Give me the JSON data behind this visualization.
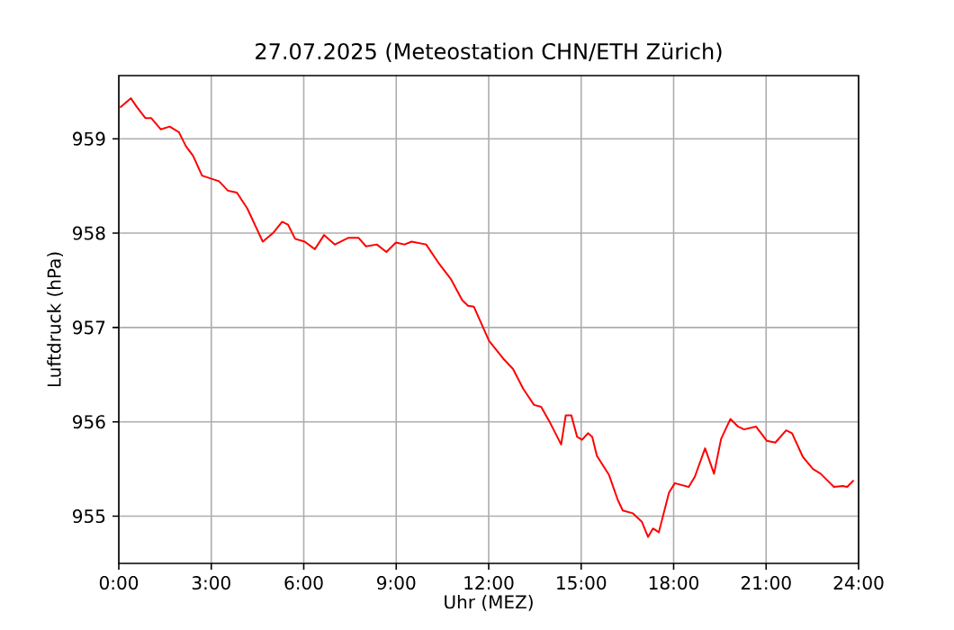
{
  "chart_data": {
    "type": "line",
    "title": "27.07.2025  (Meteostation CHN/ETH Zürich)",
    "xlabel": "Uhr (MEZ)",
    "ylabel": "Luftdruck (hPa)",
    "xlim": [
      0,
      24
    ],
    "ylim": [
      954.5,
      959.67
    ],
    "xticks": [
      {
        "value": 0,
        "label": "0:00"
      },
      {
        "value": 3,
        "label": "3:00"
      },
      {
        "value": 6,
        "label": "6:00"
      },
      {
        "value": 9,
        "label": "9:00"
      },
      {
        "value": 12,
        "label": "12:00"
      },
      {
        "value": 15,
        "label": "15:00"
      },
      {
        "value": 18,
        "label": "18:00"
      },
      {
        "value": 21,
        "label": "21:00"
      },
      {
        "value": 24,
        "label": "24:00"
      }
    ],
    "yticks": [
      955,
      956,
      957,
      958,
      959
    ],
    "grid": true,
    "marker": "none",
    "line_style": "solid",
    "series": [
      {
        "color": "#ff0000",
        "x": [
          0.04,
          0.39,
          0.58,
          0.86,
          1.05,
          1.36,
          1.65,
          1.95,
          2.18,
          2.41,
          2.7,
          3.25,
          3.54,
          3.83,
          4.17,
          4.67,
          5.0,
          5.3,
          5.49,
          5.72,
          6.03,
          6.36,
          6.66,
          7.01,
          7.44,
          7.78,
          8.02,
          8.37,
          8.68,
          8.99,
          9.27,
          9.5,
          9.97,
          10.36,
          10.78,
          11.14,
          11.33,
          11.52,
          12.01,
          12.5,
          12.79,
          13.12,
          13.47,
          13.7,
          13.96,
          14.35,
          14.5,
          14.68,
          14.87,
          15.03,
          15.22,
          15.36,
          15.51,
          15.9,
          16.19,
          16.35,
          16.68,
          16.97,
          17.17,
          17.33,
          17.52,
          17.85,
          18.04,
          18.49,
          18.69,
          19.02,
          19.31,
          19.54,
          19.84,
          20.09,
          20.28,
          20.67,
          21.02,
          21.3,
          21.65,
          21.84,
          22.19,
          22.52,
          22.77,
          23.2,
          23.49,
          23.63,
          23.84
        ],
        "values": [
          959.33,
          959.43,
          959.34,
          959.22,
          959.22,
          959.1,
          959.13,
          959.07,
          958.92,
          958.82,
          958.61,
          958.55,
          958.45,
          958.43,
          958.26,
          957.91,
          958.0,
          958.12,
          958.09,
          957.94,
          957.91,
          957.83,
          957.98,
          957.88,
          957.95,
          957.95,
          957.86,
          957.88,
          957.8,
          957.9,
          957.88,
          957.91,
          957.88,
          957.69,
          957.51,
          957.29,
          957.23,
          957.22,
          956.86,
          956.66,
          956.56,
          956.35,
          956.18,
          956.16,
          956.01,
          955.76,
          956.07,
          956.07,
          955.84,
          955.81,
          955.88,
          955.84,
          955.64,
          955.44,
          955.17,
          955.06,
          955.03,
          954.94,
          954.78,
          954.87,
          954.83,
          955.25,
          955.35,
          955.31,
          955.42,
          955.72,
          955.45,
          955.82,
          956.03,
          955.95,
          955.92,
          955.95,
          955.8,
          955.78,
          955.91,
          955.88,
          955.63,
          955.5,
          955.45,
          955.31,
          955.32,
          955.31,
          955.38
        ]
      }
    ]
  }
}
